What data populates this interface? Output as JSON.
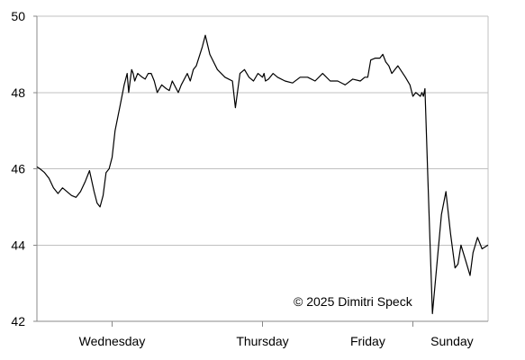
{
  "chart_data": {
    "type": "line",
    "title": "",
    "xlabel": "",
    "ylabel": "",
    "grid": true,
    "legend": "none",
    "ylim": [
      42,
      50
    ],
    "yticks": [
      {
        "value": 42,
        "label": "42"
      },
      {
        "value": 44,
        "label": "44"
      },
      {
        "value": 46,
        "label": "46"
      },
      {
        "value": 48,
        "label": "48"
      },
      {
        "value": 50,
        "label": "50"
      }
    ],
    "xlim": [
      0,
      3
    ],
    "xticks": [
      0.5,
      1.5,
      2.5
    ],
    "xcategories": [
      {
        "label": "Wednesday",
        "center": 0.5
      },
      {
        "label": "Thursday",
        "center": 1.5
      },
      {
        "label": "Friday",
        "center": 2.2
      },
      {
        "label": "Sunday",
        "center": 2.76
      }
    ],
    "annotation": "© 2025 Dimitri Speck",
    "line_color": "#000000",
    "grid_color": "#c0c0c0",
    "series": [
      {
        "x": [
          0.0,
          0.02,
          0.05,
          0.08,
          0.11,
          0.14,
          0.17,
          0.2,
          0.23,
          0.26,
          0.29,
          0.32,
          0.35,
          0.38,
          0.4,
          0.42,
          0.44,
          0.46,
          0.48,
          0.5,
          0.52,
          0.55,
          0.58,
          0.6,
          0.61,
          0.62,
          0.63,
          0.64,
          0.65,
          0.66,
          0.67,
          0.7,
          0.72,
          0.74,
          0.76,
          0.78,
          0.8,
          0.83,
          0.86,
          0.88,
          0.9,
          0.92,
          0.94,
          0.96,
          1.0,
          1.02,
          1.04,
          1.06,
          1.1,
          1.12,
          1.15,
          1.2,
          1.25,
          1.3,
          1.32,
          1.35,
          1.38,
          1.41,
          1.44,
          1.47,
          1.5,
          1.51,
          1.52,
          1.54,
          1.57,
          1.6,
          1.65,
          1.7,
          1.75,
          1.8,
          1.85,
          1.9,
          1.95,
          2.0,
          2.05,
          2.1,
          2.15,
          2.18,
          2.2,
          2.22,
          2.25,
          2.28,
          2.3,
          2.32,
          2.34,
          2.36,
          2.4,
          2.45,
          2.48,
          2.5,
          2.52,
          2.55,
          2.56,
          2.57,
          2.575,
          2.58,
          2.6,
          2.63,
          2.66,
          2.69,
          2.72,
          2.75,
          2.78,
          2.8,
          2.82,
          2.85,
          2.88,
          2.9,
          2.93,
          2.96,
          3.0
        ],
        "y": [
          46.05,
          46.0,
          45.9,
          45.75,
          45.5,
          45.35,
          45.5,
          45.4,
          45.3,
          45.25,
          45.4,
          45.65,
          45.95,
          45.4,
          45.1,
          45.0,
          45.3,
          45.9,
          46.0,
          46.3,
          47.0,
          47.6,
          48.2,
          48.5,
          48.0,
          48.3,
          48.6,
          48.5,
          48.3,
          48.4,
          48.5,
          48.4,
          48.35,
          48.5,
          48.5,
          48.3,
          48.0,
          48.2,
          48.1,
          48.05,
          48.3,
          48.15,
          48.0,
          48.2,
          48.5,
          48.3,
          48.6,
          48.7,
          49.2,
          49.5,
          49.0,
          48.6,
          48.4,
          48.3,
          47.6,
          48.5,
          48.6,
          48.4,
          48.3,
          48.5,
          48.4,
          48.5,
          48.3,
          48.35,
          48.5,
          48.4,
          48.3,
          48.25,
          48.4,
          48.4,
          48.3,
          48.5,
          48.3,
          48.3,
          48.2,
          48.35,
          48.3,
          48.4,
          48.4,
          48.85,
          48.9,
          48.9,
          49.0,
          48.8,
          48.7,
          48.5,
          48.7,
          48.4,
          48.2,
          47.9,
          48.0,
          47.9,
          48.0,
          47.9,
          48.0,
          48.1,
          45.7,
          42.2,
          43.5,
          44.8,
          45.4,
          44.3,
          43.4,
          43.5,
          44.0,
          43.6,
          43.2,
          43.8,
          44.2,
          43.9,
          44.0
        ]
      }
    ]
  }
}
